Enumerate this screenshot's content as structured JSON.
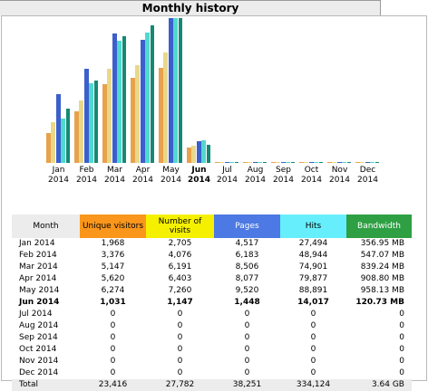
{
  "title": "Monthly history",
  "colors": {
    "unique": "#e8a24c",
    "visits": "#e9d889",
    "pages": "#3c5fcc",
    "hits": "#4fd9cf",
    "bandwidth": "#148a74"
  },
  "chart_data": {
    "type": "bar",
    "categories": [
      "Jan 2014",
      "Feb 2014",
      "Mar 2014",
      "Apr 2014",
      "May 2014",
      "Jun 2014",
      "Jul 2014",
      "Aug 2014",
      "Sep 2014",
      "Oct 2014",
      "Nov 2014",
      "Dec 2014"
    ],
    "series": [
      {
        "name": "Unique visitors",
        "values": [
          1968,
          3376,
          5147,
          5620,
          6274,
          1031,
          0,
          0,
          0,
          0,
          0,
          0
        ]
      },
      {
        "name": "Number of visits",
        "values": [
          2705,
          4076,
          6191,
          6403,
          7260,
          1147,
          0,
          0,
          0,
          0,
          0,
          0
        ]
      },
      {
        "name": "Pages",
        "values": [
          4517,
          6183,
          8506,
          8077,
          9520,
          1448,
          0,
          0,
          0,
          0,
          0,
          0
        ]
      },
      {
        "name": "Hits",
        "values": [
          27494,
          48944,
          74901,
          79877,
          88891,
          14017,
          0,
          0,
          0,
          0,
          0,
          0
        ]
      },
      {
        "name": "Bandwidth",
        "values": [
          356.95,
          547.07,
          839.24,
          908.8,
          958.13,
          120.73,
          0,
          0,
          0,
          0,
          0,
          0
        ]
      }
    ],
    "bandwidth_unit": "MB"
  },
  "chart_labels": [
    {
      "m": "Jan",
      "y": "2014"
    },
    {
      "m": "Feb",
      "y": "2014"
    },
    {
      "m": "Mar",
      "y": "2014"
    },
    {
      "m": "Apr",
      "y": "2014"
    },
    {
      "m": "May",
      "y": "2014"
    },
    {
      "m": "Jun",
      "y": "2014"
    },
    {
      "m": "Jul",
      "y": "2014"
    },
    {
      "m": "Aug",
      "y": "2014"
    },
    {
      "m": "Sep",
      "y": "2014"
    },
    {
      "m": "Oct",
      "y": "2014"
    },
    {
      "m": "Nov",
      "y": "2014"
    },
    {
      "m": "Dec",
      "y": "2014"
    }
  ],
  "current_month_index": 5,
  "table": {
    "headers": {
      "month": "Month",
      "unique": "Unique visitors",
      "visits": "Number of visits",
      "pages": "Pages",
      "hits": "Hits",
      "bandwidth": "Bandwidth"
    },
    "rows": [
      {
        "month": "Jan 2014",
        "unique": "1,968",
        "visits": "2,705",
        "pages": "4,517",
        "hits": "27,494",
        "bandwidth": "356.95 MB"
      },
      {
        "month": "Feb 2014",
        "unique": "3,376",
        "visits": "4,076",
        "pages": "6,183",
        "hits": "48,944",
        "bandwidth": "547.07 MB"
      },
      {
        "month": "Mar 2014",
        "unique": "5,147",
        "visits": "6,191",
        "pages": "8,506",
        "hits": "74,901",
        "bandwidth": "839.24 MB"
      },
      {
        "month": "Apr 2014",
        "unique": "5,620",
        "visits": "6,403",
        "pages": "8,077",
        "hits": "79,877",
        "bandwidth": "908.80 MB"
      },
      {
        "month": "May 2014",
        "unique": "6,274",
        "visits": "7,260",
        "pages": "9,520",
        "hits": "88,891",
        "bandwidth": "958.13 MB"
      },
      {
        "month": "Jun 2014",
        "unique": "1,031",
        "visits": "1,147",
        "pages": "1,448",
        "hits": "14,017",
        "bandwidth": "120.73 MB"
      },
      {
        "month": "Jul 2014",
        "unique": "0",
        "visits": "0",
        "pages": "0",
        "hits": "0",
        "bandwidth": "0"
      },
      {
        "month": "Aug 2014",
        "unique": "0",
        "visits": "0",
        "pages": "0",
        "hits": "0",
        "bandwidth": "0"
      },
      {
        "month": "Sep 2014",
        "unique": "0",
        "visits": "0",
        "pages": "0",
        "hits": "0",
        "bandwidth": "0"
      },
      {
        "month": "Oct 2014",
        "unique": "0",
        "visits": "0",
        "pages": "0",
        "hits": "0",
        "bandwidth": "0"
      },
      {
        "month": "Nov 2014",
        "unique": "0",
        "visits": "0",
        "pages": "0",
        "hits": "0",
        "bandwidth": "0"
      },
      {
        "month": "Dec 2014",
        "unique": "0",
        "visits": "0",
        "pages": "0",
        "hits": "0",
        "bandwidth": "0"
      }
    ],
    "total": {
      "month": "Total",
      "unique": "23,416",
      "visits": "27,782",
      "pages": "38,251",
      "hits": "334,124",
      "bandwidth": "3.64 GB"
    }
  }
}
